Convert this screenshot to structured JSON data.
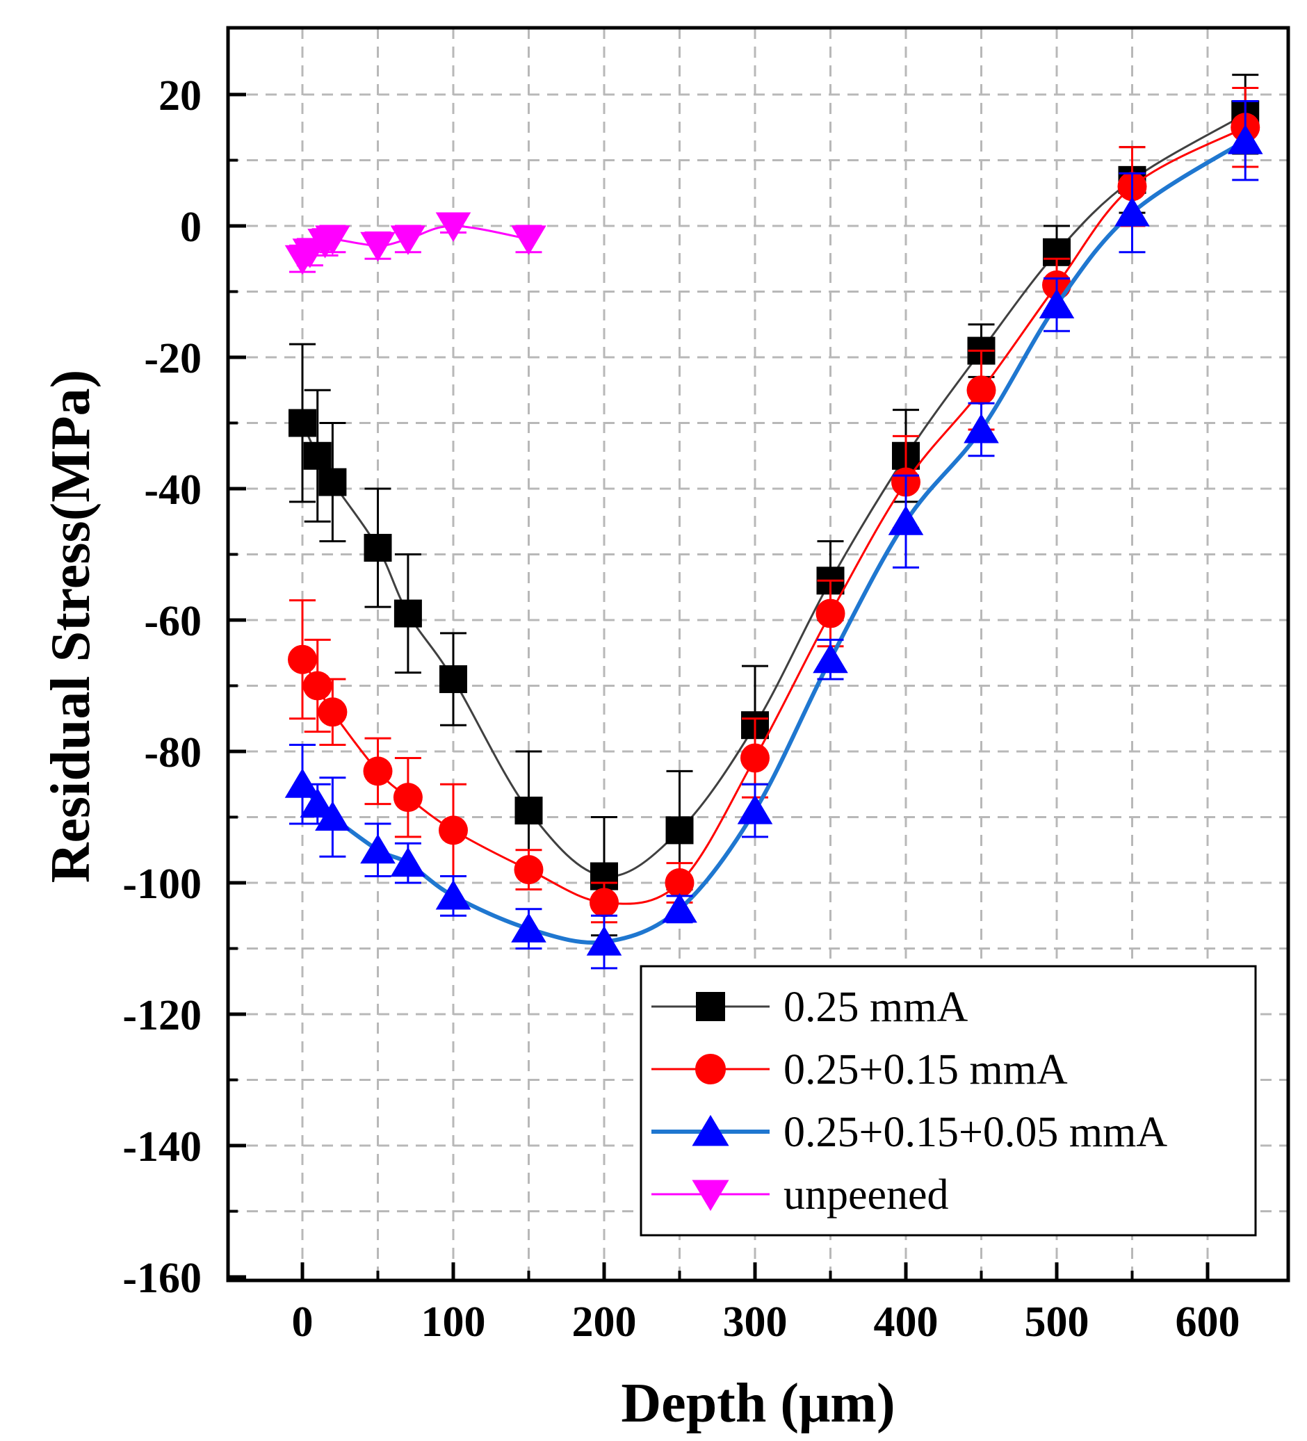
{
  "chart_data": {
    "type": "line",
    "title": "",
    "xlabel": "Depth (μm)",
    "ylabel": "Residual Stress(MPa)",
    "xlim": [
      -50,
      650
    ],
    "ylim": [
      -160,
      30
    ],
    "xticks": [
      0,
      100,
      200,
      300,
      400,
      500,
      600
    ],
    "xtick_labels": [
      "0",
      "100",
      "200",
      "300",
      "400",
      "500",
      "600"
    ],
    "yticks": [
      20,
      0,
      -20,
      -40,
      -60,
      -80,
      -100,
      -120,
      -140,
      -160
    ],
    "ytick_labels": [
      "20",
      "0",
      "-20",
      "-40",
      "-60",
      "-80",
      "-100",
      "-120",
      "-140",
      "-160"
    ],
    "grid": true,
    "legend_position": "bottom-right",
    "series": [
      {
        "name": "0.25 mmA",
        "marker": "square",
        "color": "#000000",
        "line_color": "#404040",
        "x": [
          0,
          10,
          20,
          50,
          70,
          100,
          150,
          200,
          250,
          300,
          350,
          400,
          450,
          500,
          550,
          625
        ],
        "y": [
          -30,
          -35,
          -39,
          -49,
          -59,
          -69,
          -89,
          -99,
          -92,
          -76,
          -54,
          -35,
          -19,
          -4,
          7,
          17
        ],
        "error": [
          12,
          10,
          9,
          9,
          9,
          7,
          9,
          9,
          9,
          9,
          6,
          7,
          4,
          4,
          5,
          6
        ]
      },
      {
        "name": "0.25+0.15 mmA",
        "marker": "circle",
        "color": "#ff0000",
        "line_color": "#ff0000",
        "x": [
          0,
          10,
          20,
          50,
          70,
          100,
          150,
          200,
          250,
          300,
          350,
          400,
          450,
          500,
          550,
          625
        ],
        "y": [
          -66,
          -70,
          -74,
          -83,
          -87,
          -92,
          -98,
          -103,
          -100,
          -81,
          -59,
          -39,
          -25,
          -9,
          6,
          15
        ],
        "error": [
          9,
          7,
          5,
          5,
          6,
          7,
          3,
          3,
          3,
          6,
          5,
          7,
          6,
          4,
          6,
          6
        ]
      },
      {
        "name": "0.25+0.15+0.05 mmA",
        "marker": "triangle-up",
        "color": "#0000ff",
        "line_color": "#1f77d0",
        "x": [
          0,
          10,
          20,
          50,
          70,
          100,
          150,
          200,
          250,
          300,
          350,
          400,
          450,
          500,
          550,
          625
        ],
        "y": [
          -85,
          -88,
          -90,
          -95,
          -97,
          -102,
          -107,
          -109,
          -104,
          -89,
          -66,
          -45,
          -31,
          -12,
          2,
          13
        ],
        "error": [
          6,
          3,
          6,
          4,
          3,
          3,
          3,
          4,
          2,
          4,
          3,
          7,
          4,
          4,
          6,
          6
        ]
      },
      {
        "name": "unpeened",
        "marker": "triangle-down",
        "color": "#ff00ff",
        "line_color": "#ff00ff",
        "x": [
          0,
          5,
          15,
          20,
          50,
          70,
          100,
          150
        ],
        "y": [
          -5,
          -4,
          -2.5,
          -2,
          -3,
          -2,
          0,
          -2
        ],
        "error": [
          2,
          2,
          2,
          2,
          2,
          2,
          1,
          2
        ]
      }
    ]
  }
}
